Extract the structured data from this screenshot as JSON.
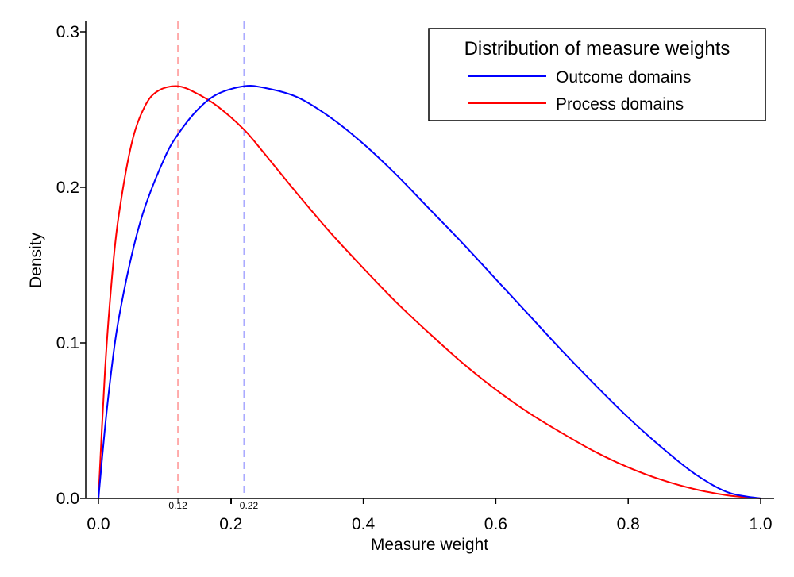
{
  "chart_data": {
    "type": "line",
    "xlabel": "Measure weight",
    "ylabel": "Density",
    "xlim": [
      0,
      1
    ],
    "ylim": [
      0,
      0.3
    ],
    "xticks": [
      "0.0",
      "0.2",
      "0.4",
      "0.6",
      "0.8",
      "1.0"
    ],
    "yticks": [
      "0.0",
      "0.1",
      "0.2",
      "0.3"
    ],
    "legend": {
      "title": "Distribution of measure weights",
      "placement": "top-right"
    },
    "series": [
      {
        "name": "Outcome domains",
        "color": "#0000ff",
        "x": [
          0.0,
          0.01,
          0.02,
          0.03,
          0.05,
          0.07,
          0.1,
          0.12,
          0.15,
          0.18,
          0.22,
          0.25,
          0.3,
          0.35,
          0.4,
          0.45,
          0.5,
          0.55,
          0.6,
          0.65,
          0.7,
          0.75,
          0.8,
          0.85,
          0.9,
          0.95,
          1.0
        ],
        "y": [
          0.0,
          0.046,
          0.084,
          0.114,
          0.156,
          0.187,
          0.219,
          0.234,
          0.25,
          0.26,
          0.265,
          0.264,
          0.258,
          0.245,
          0.228,
          0.208,
          0.186,
          0.164,
          0.141,
          0.118,
          0.095,
          0.073,
          0.052,
          0.033,
          0.016,
          0.004,
          0.0
        ]
      },
      {
        "name": "Process domains",
        "color": "#ff0000",
        "x": [
          0.0,
          0.01,
          0.02,
          0.03,
          0.05,
          0.07,
          0.09,
          0.12,
          0.15,
          0.18,
          0.22,
          0.25,
          0.3,
          0.35,
          0.4,
          0.45,
          0.5,
          0.55,
          0.6,
          0.65,
          0.7,
          0.75,
          0.8,
          0.85,
          0.9,
          0.95,
          1.0
        ],
        "y": [
          0.0,
          0.083,
          0.14,
          0.18,
          0.228,
          0.252,
          0.262,
          0.265,
          0.26,
          0.252,
          0.237,
          0.222,
          0.196,
          0.171,
          0.148,
          0.126,
          0.106,
          0.087,
          0.07,
          0.055,
          0.042,
          0.03,
          0.02,
          0.012,
          0.006,
          0.002,
          0.0
        ]
      }
    ],
    "reference_lines": [
      {
        "x": 0.12,
        "label": "0.12",
        "color": "#ffaaaa"
      },
      {
        "x": 0.22,
        "label": "0.22",
        "color": "#aaaaff"
      }
    ]
  }
}
